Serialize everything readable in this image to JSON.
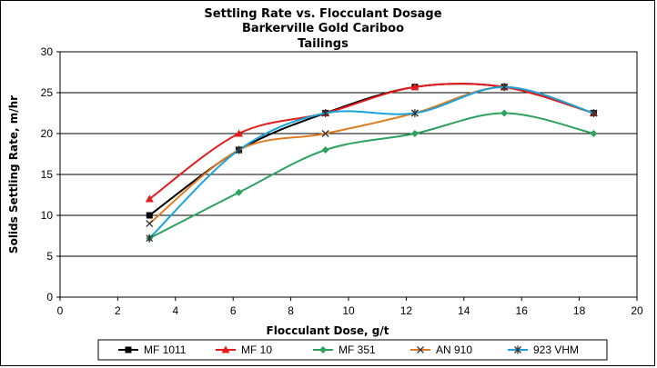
{
  "chart_data": {
    "type": "line",
    "title": [
      "Settling Rate vs. Flocculant Dosage",
      "Barkerville Gold Cariboo",
      "Tailings"
    ],
    "xlabel": "Flocculant Dose, g/t",
    "ylabel": "Solids Settling Rate, m/hr",
    "xlim": [
      0,
      20
    ],
    "ylim": [
      0,
      30
    ],
    "xticks": [
      0,
      2,
      4,
      6,
      8,
      10,
      12,
      14,
      16,
      18,
      20
    ],
    "yticks": [
      0,
      5,
      10,
      15,
      20,
      25,
      30
    ],
    "grid": "horizontal",
    "legend_position": "bottom",
    "series": [
      {
        "name": "MF 1011",
        "color": "#000000",
        "marker": "square",
        "x": [
          3.1,
          6.2,
          9.2,
          12.3,
          15.4,
          18.5
        ],
        "y": [
          10,
          18,
          22.5,
          25.7,
          25.7,
          22.5
        ]
      },
      {
        "name": "MF 10",
        "color": "#e41a1c",
        "marker": "triangle",
        "x": [
          3.1,
          6.2,
          9.2,
          12.3,
          15.4,
          18.5
        ],
        "y": [
          12,
          20,
          22.5,
          25.7,
          25.7,
          22.5
        ]
      },
      {
        "name": "MF 351",
        "color": "#2ca25f",
        "marker": "diamond",
        "x": [
          3.1,
          6.2,
          9.2,
          12.3,
          15.4,
          18.5
        ],
        "y": [
          7.2,
          12.8,
          18,
          20,
          22.5,
          20
        ]
      },
      {
        "name": "AN 910",
        "color": "#e07b20",
        "marker": "x",
        "x": [
          3.1,
          6.2,
          9.2,
          12.3,
          15.4,
          18.5
        ],
        "y": [
          9,
          18,
          20,
          22.5,
          25.7,
          22.5
        ]
      },
      {
        "name": "923 VHM",
        "color": "#1aa3d9",
        "marker": "star",
        "x": [
          3.1,
          6.2,
          9.2,
          12.3,
          15.4,
          18.5
        ],
        "y": [
          7.2,
          18,
          22.5,
          22.5,
          25.7,
          22.5
        ]
      }
    ]
  }
}
